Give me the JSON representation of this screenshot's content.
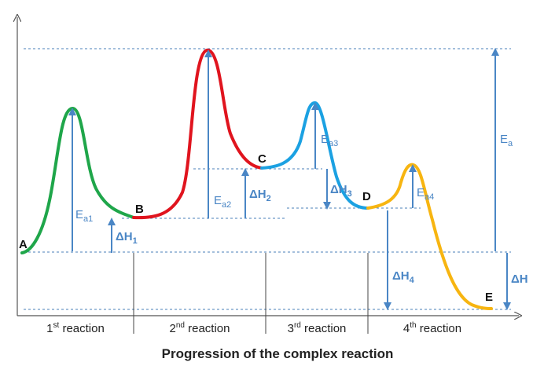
{
  "points": {
    "A": "A",
    "B": "B",
    "C": "C",
    "D": "D",
    "E": "E"
  },
  "activation_labels": {
    "ea1": {
      "main": "E",
      "sub": "a1"
    },
    "ea2": {
      "main": "E",
      "sub": "a2"
    },
    "ea3": {
      "main": "E",
      "sub": "a3"
    },
    "ea4": {
      "main": "E",
      "sub": "a4"
    },
    "ea": {
      "main": "E",
      "sub": "a"
    }
  },
  "enthalpy_labels": {
    "dh1": {
      "main": "ΔH",
      "sub": "1"
    },
    "dh2": {
      "main": "ΔH",
      "sub": "2"
    },
    "dh3": {
      "main": "ΔH",
      "sub": "3"
    },
    "dh4": {
      "main": "ΔH",
      "sub": "4"
    },
    "dh": {
      "main": "ΔH",
      "sub": ""
    }
  },
  "segments": [
    {
      "ordinal": "1",
      "suffix": "st",
      "text": " reaction"
    },
    {
      "ordinal": "2",
      "suffix": "nd",
      "text": " reaction"
    },
    {
      "ordinal": "3",
      "suffix": "rd",
      "text": " reaction"
    },
    {
      "ordinal": "4",
      "suffix": "th",
      "text": " reaction"
    }
  ],
  "x_axis_title": "Progression of the complex reaction",
  "colors": {
    "reaction1": "#1fa64a",
    "reaction2": "#e0141e",
    "reaction3": "#1ba1e2",
    "reaction4": "#f7b511",
    "arrows": "#4a86c5",
    "dashed": "#4a7fb8",
    "axes": "#555555"
  }
}
